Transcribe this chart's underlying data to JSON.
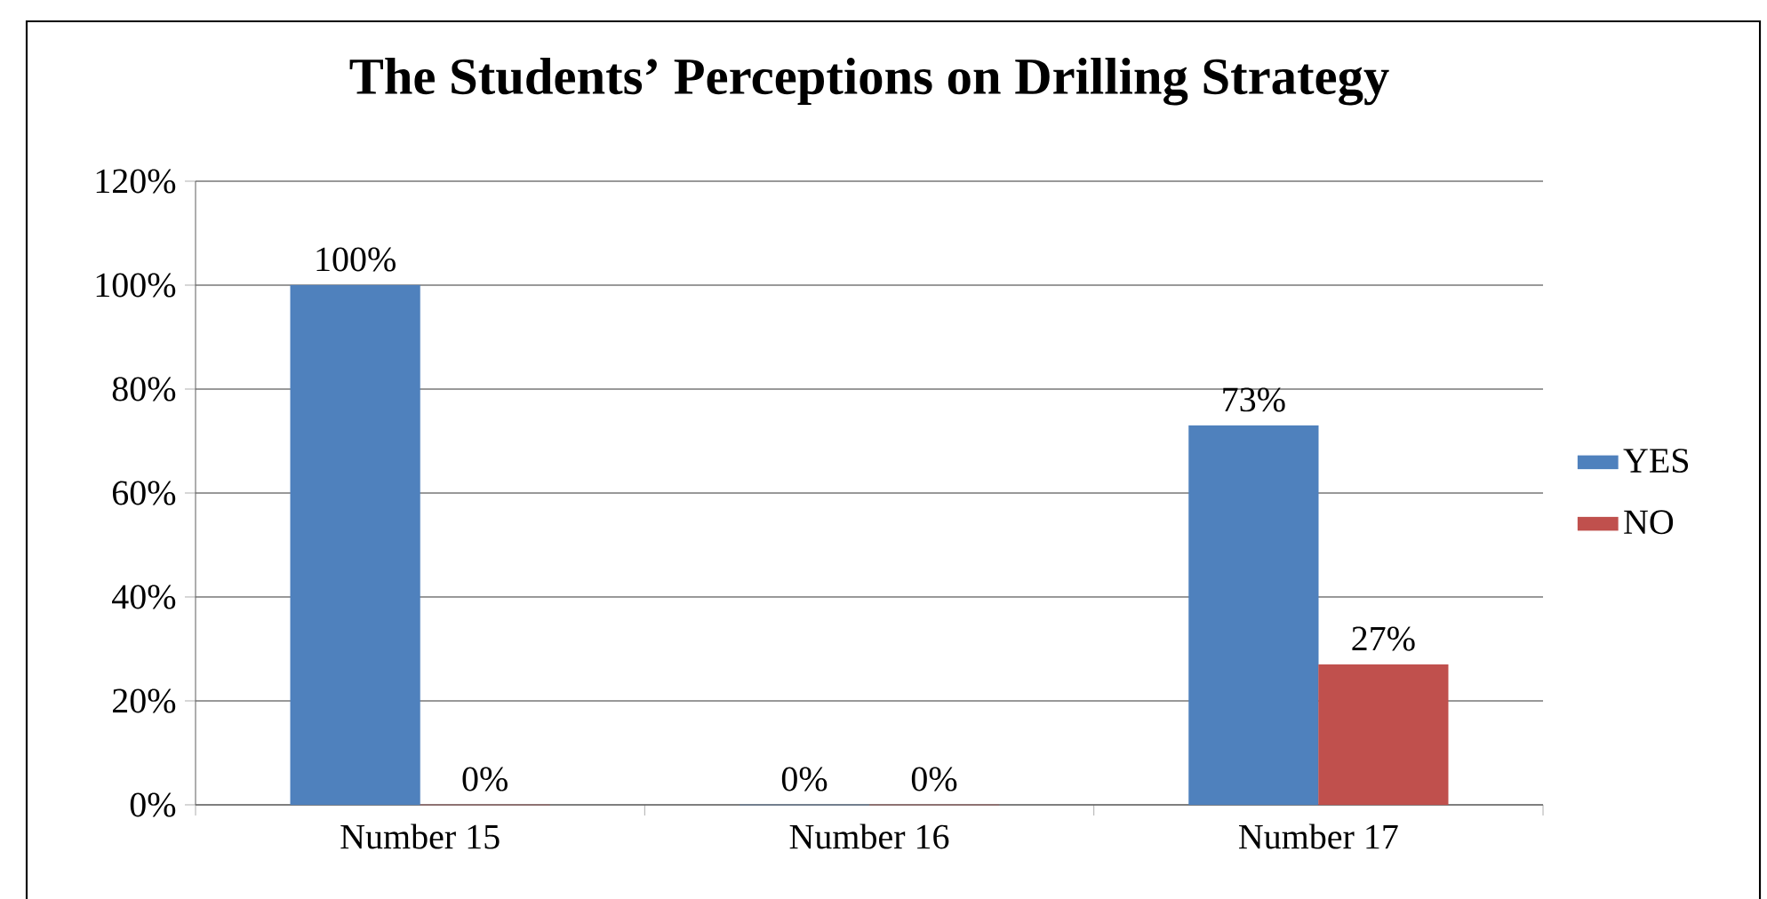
{
  "chart_data": {
    "type": "bar",
    "title": "The Students’ Perceptions on Drilling Strategy",
    "categories": [
      "Number 15",
      "Number 16",
      "Number 17"
    ],
    "series": [
      {
        "name": "YES",
        "color": "#4f81bd",
        "values": [
          100,
          0,
          73
        ],
        "value_labels": [
          "100%",
          "0%",
          "73%"
        ]
      },
      {
        "name": "NO",
        "color": "#c0504d",
        "values": [
          0,
          0,
          27
        ],
        "value_labels": [
          "0%",
          "0%",
          "27%"
        ]
      }
    ],
    "ylim": [
      0,
      120
    ],
    "yticks": [
      {
        "value": 0,
        "label": "0%"
      },
      {
        "value": 20,
        "label": "20%"
      },
      {
        "value": 40,
        "label": "40%"
      },
      {
        "value": 60,
        "label": "60%"
      },
      {
        "value": 80,
        "label": "80%"
      },
      {
        "value": 100,
        "label": "100%"
      },
      {
        "value": 120,
        "label": "120%"
      }
    ],
    "grid": "y",
    "legend": "right"
  }
}
